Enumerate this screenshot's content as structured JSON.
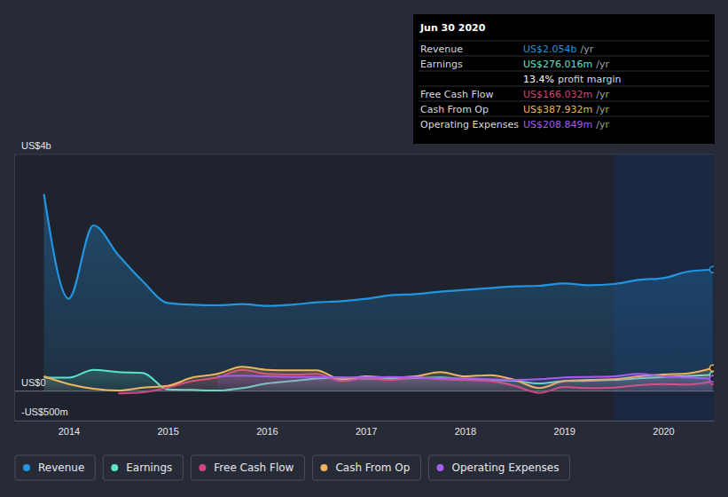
{
  "chart_data": {
    "type": "line",
    "x": [
      2013.75,
      2014,
      2014.25,
      2014.5,
      2014.75,
      2015,
      2015.25,
      2015.5,
      2015.75,
      2016,
      2016.25,
      2016.5,
      2016.75,
      2017,
      2017.25,
      2017.5,
      2017.75,
      2018,
      2018.25,
      2018.5,
      2018.75,
      2019,
      2019.25,
      2019.5,
      2019.75,
      2020,
      2020.25,
      2020.5
    ],
    "xlim": [
      2013.45,
      2020.51
    ],
    "xticks": [
      2014,
      2015,
      2016,
      2017,
      2018,
      2019,
      2020
    ],
    "ylim": [
      -500,
      4000
    ],
    "yticks": [
      {
        "value": -500,
        "label": "-US$500m"
      },
      {
        "value": 0,
        "label": "US$0"
      },
      {
        "value": 4000,
        "label": "US$4b"
      }
    ],
    "grid": true,
    "legend": "bottom",
    "series": [
      {
        "name": "Revenue",
        "color": "#2394df",
        "values": [
          3330,
          1560,
          2800,
          2300,
          1850,
          1490,
          1460,
          1450,
          1470,
          1440,
          1460,
          1500,
          1520,
          1560,
          1620,
          1640,
          1680,
          1710,
          1740,
          1770,
          1780,
          1820,
          1790,
          1810,
          1880,
          1910,
          2020,
          2054
        ]
      },
      {
        "name": "Earnings",
        "color": "#5ee2cc",
        "values": [
          227,
          227,
          360,
          320,
          307,
          27,
          20,
          10,
          50,
          130,
          170,
          213,
          227,
          210,
          210,
          220,
          230,
          200,
          190,
          175,
          130,
          170,
          175,
          190,
          215,
          240,
          255,
          276
        ]
      },
      {
        "name": "Free Cash Flow",
        "color": "#d2467f",
        "values": [
          null,
          null,
          null,
          -40,
          -20,
          60,
          170,
          230,
          360,
          290,
          280,
          290,
          170,
          215,
          190,
          230,
          200,
          190,
          170,
          90,
          -30,
          70,
          50,
          60,
          100,
          120,
          110,
          166
        ]
      },
      {
        "name": "Cash From Op",
        "color": "#eeb55e",
        "values": [
          250,
          120,
          40,
          10,
          60,
          90,
          230,
          290,
          410,
          360,
          350,
          350,
          200,
          250,
          230,
          250,
          320,
          250,
          270,
          190,
          50,
          170,
          190,
          200,
          250,
          280,
          300,
          388
        ]
      },
      {
        "name": "Operating Expenses",
        "color": "#a45df0",
        "values": [
          null,
          null,
          null,
          null,
          null,
          null,
          null,
          250,
          260,
          250,
          240,
          240,
          230,
          230,
          240,
          230,
          215,
          215,
          200,
          190,
          200,
          230,
          240,
          250,
          290,
          250,
          230,
          209
        ]
      }
    ],
    "tooltip": {
      "title": "Jun 30 2020",
      "rows": [
        {
          "label": "Revenue",
          "value": "US$2.054b",
          "unit": "/yr"
        },
        {
          "label": "Earnings",
          "value": "US$276.016m",
          "unit": "/yr"
        },
        {
          "value": "13.4%",
          "unit": "profit margin"
        },
        {
          "label": "Free Cash Flow",
          "value": "US$166.032m",
          "unit": "/yr"
        },
        {
          "label": "Cash From Op",
          "value": "US$387.932m",
          "unit": "/yr"
        },
        {
          "label": "Operating Expenses",
          "value": "US$208.849m",
          "unit": "/yr"
        }
      ]
    }
  }
}
